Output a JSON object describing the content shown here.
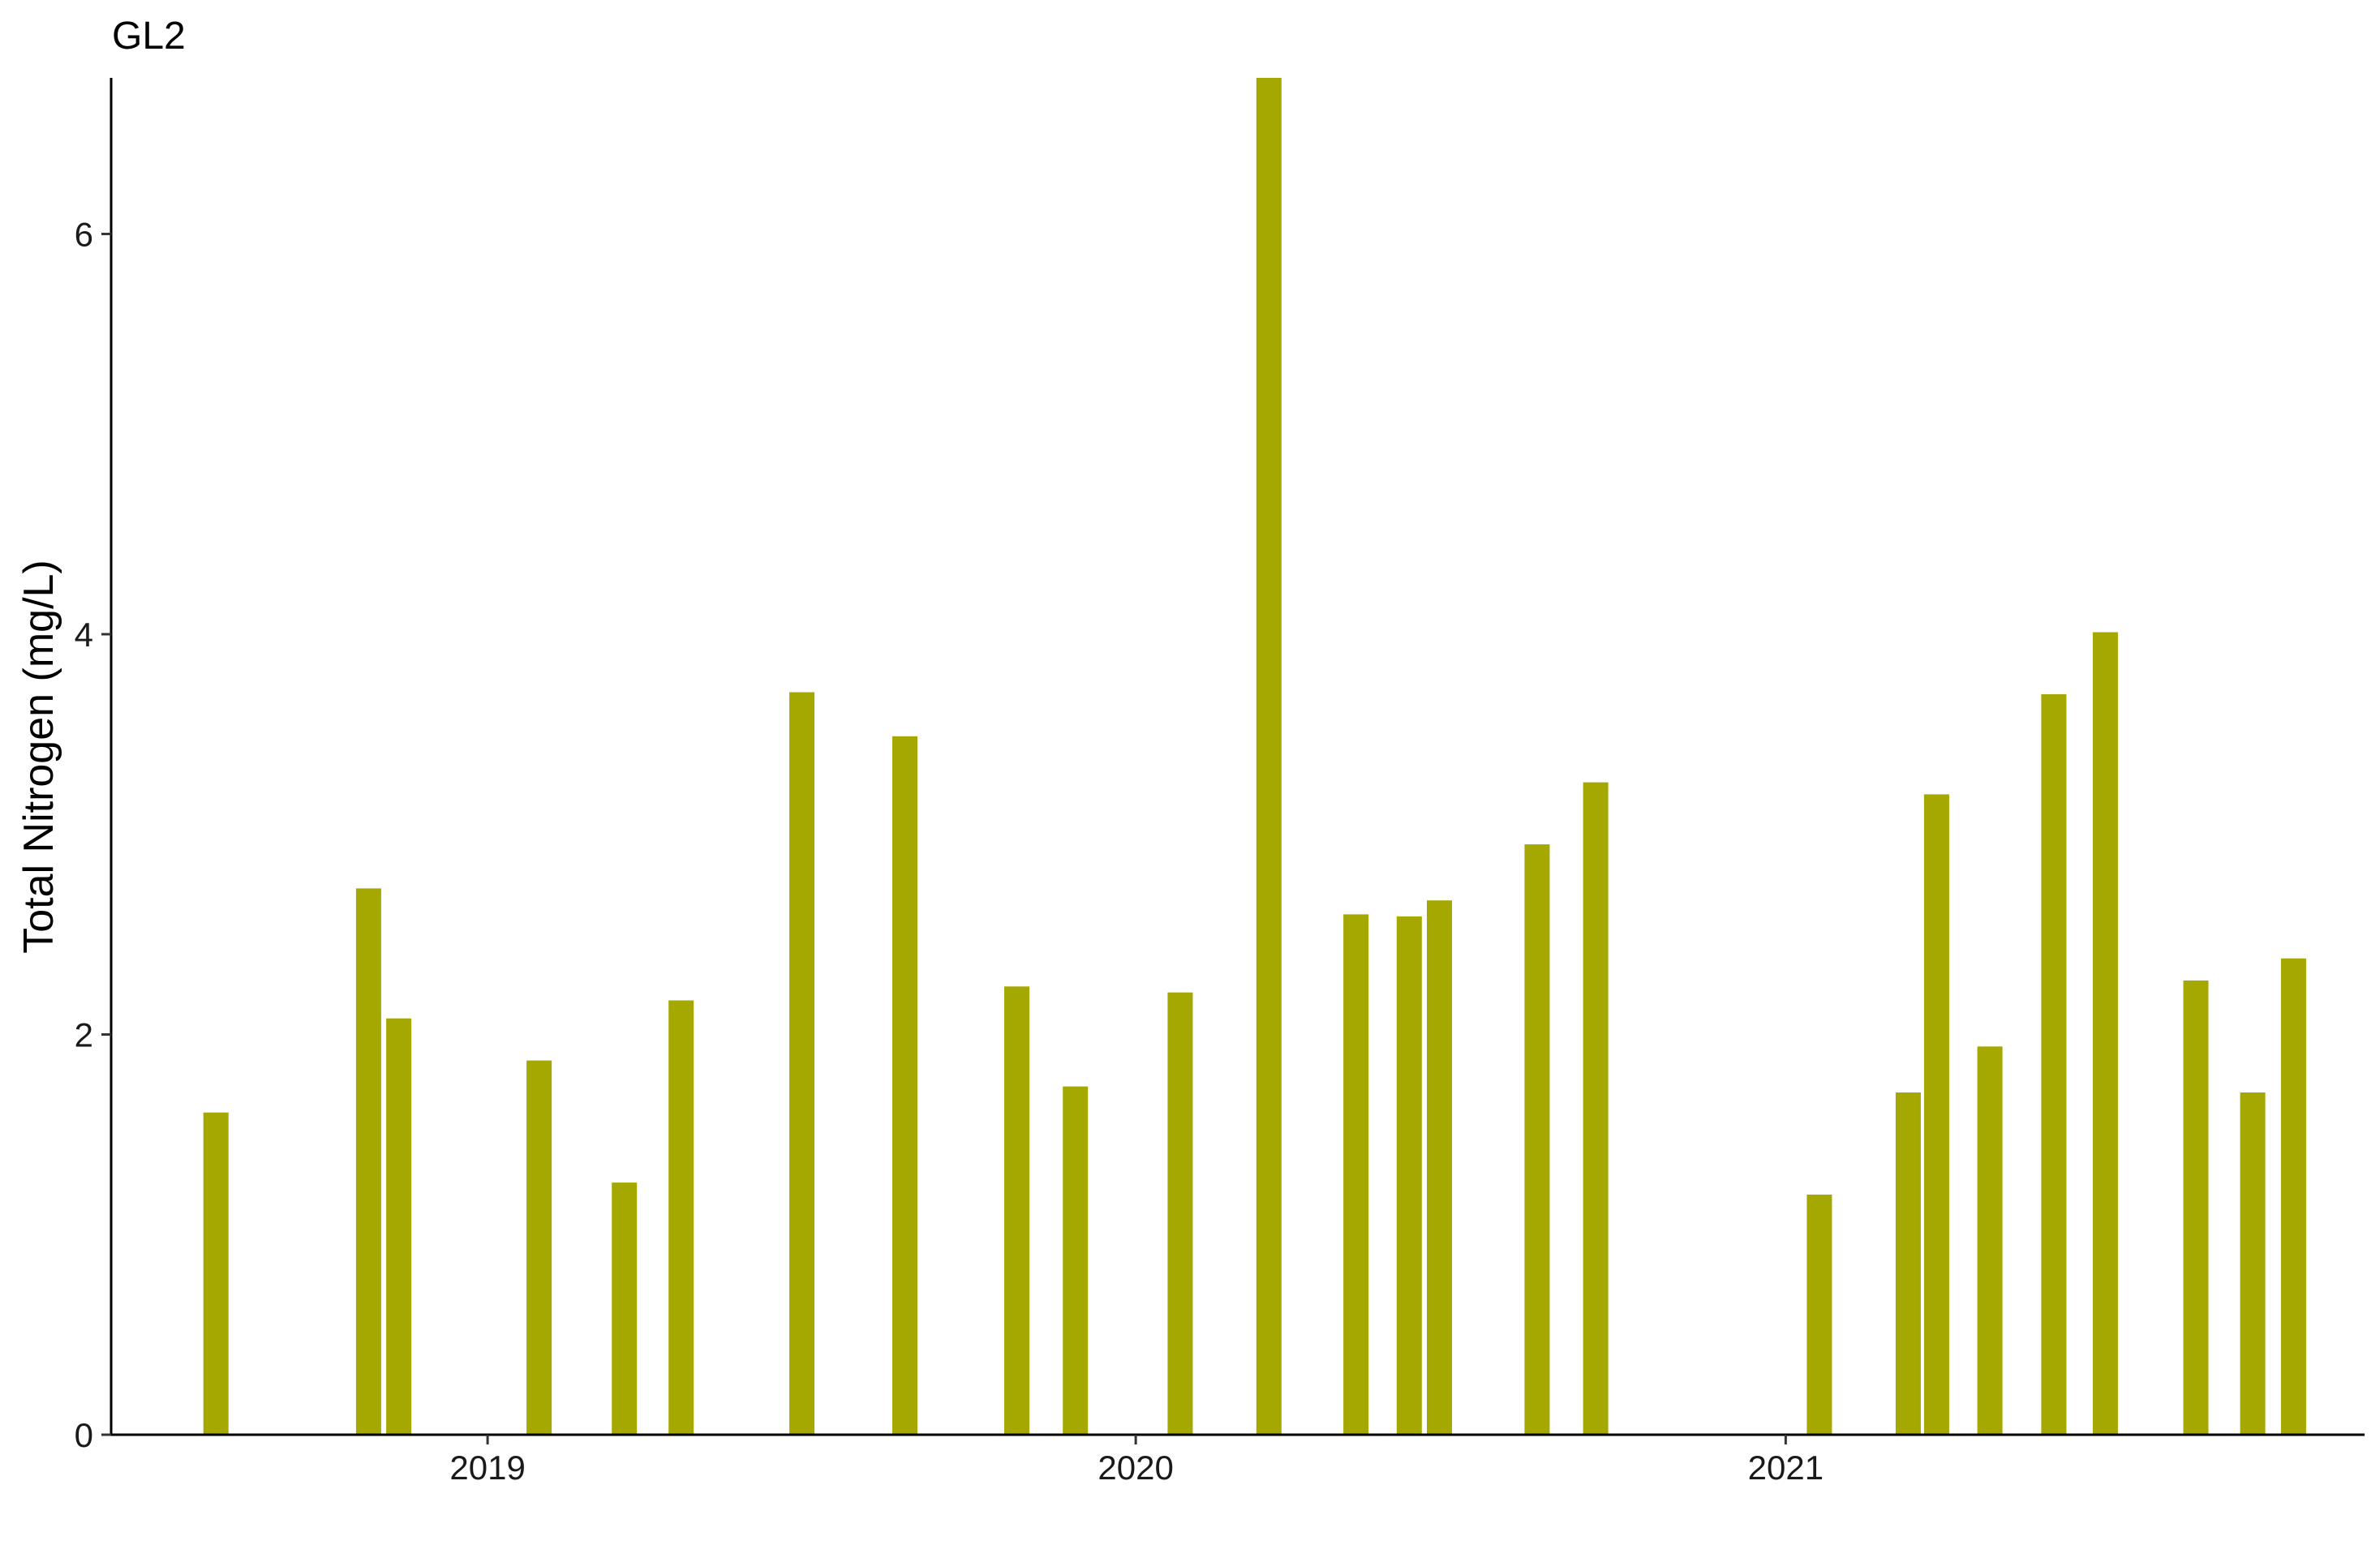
{
  "chart_data": {
    "type": "bar",
    "title": "GL2",
    "xlabel": "",
    "ylabel": "Total Nitrogen (mg/L)",
    "bar_color": "#A5A800",
    "xlim": [
      "2018-06-03",
      "2021-11-23"
    ],
    "ylim": [
      0,
      6.78
    ],
    "x_ticks": [
      "2019",
      "2020",
      "2021"
    ],
    "y_ticks": [
      0,
      2,
      4,
      6
    ],
    "grid": false,
    "legend": "none",
    "x": [
      "2018-08-01",
      "2018-10-26",
      "2018-11-12",
      "2019-01-30",
      "2019-03-19",
      "2019-04-20",
      "2019-06-27",
      "2019-08-24",
      "2019-10-26",
      "2019-11-28",
      "2020-01-26",
      "2020-03-16",
      "2020-05-04",
      "2020-06-03",
      "2020-06-20",
      "2020-08-14",
      "2020-09-16",
      "2021-01-20",
      "2021-03-11",
      "2021-03-27",
      "2021-04-26",
      "2021-06-01",
      "2021-06-30",
      "2021-08-20",
      "2021-09-21",
      "2021-10-14"
    ],
    "values": [
      1.61,
      2.73,
      2.08,
      1.87,
      1.26,
      2.17,
      3.71,
      3.49,
      2.24,
      1.74,
      2.21,
      6.78,
      2.6,
      2.59,
      2.67,
      2.95,
      3.26,
      1.2,
      1.71,
      3.2,
      1.94,
      3.7,
      4.01,
      2.27,
      1.71,
      2.38
    ]
  }
}
